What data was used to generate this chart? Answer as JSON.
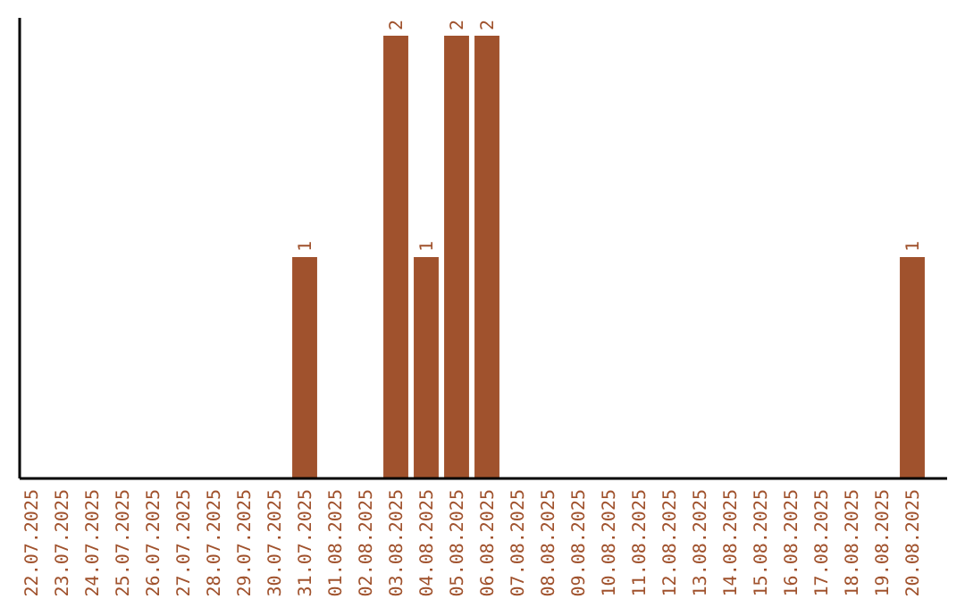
{
  "chart_data": {
    "type": "bar",
    "categories": [
      "22.07.2025",
      "23.07.2025",
      "24.07.2025",
      "25.07.2025",
      "26.07.2025",
      "27.07.2025",
      "28.07.2025",
      "29.07.2025",
      "30.07.2025",
      "31.07.2025",
      "01.08.2025",
      "02.08.2025",
      "03.08.2025",
      "04.08.2025",
      "05.08.2025",
      "06.08.2025",
      "07.08.2025",
      "08.08.2025",
      "09.08.2025",
      "10.08.2025",
      "11.08.2025",
      "12.08.2025",
      "13.08.2025",
      "14.08.2025",
      "15.08.2025",
      "16.08.2025",
      "17.08.2025",
      "18.08.2025",
      "19.08.2025",
      "20.08.2025"
    ],
    "values": [
      0,
      0,
      0,
      0,
      0,
      0,
      0,
      0,
      0,
      1,
      0,
      0,
      2,
      1,
      2,
      2,
      0,
      0,
      0,
      0,
      0,
      0,
      0,
      0,
      0,
      0,
      0,
      0,
      0,
      1
    ],
    "value_labels": [
      null,
      null,
      null,
      null,
      null,
      null,
      null,
      null,
      null,
      "1",
      null,
      null,
      "2",
      "1",
      "2",
      "2",
      null,
      null,
      null,
      null,
      null,
      null,
      null,
      null,
      null,
      null,
      null,
      null,
      null,
      "1"
    ],
    "color": "#a0522d",
    "tick_labels": "x"
  }
}
